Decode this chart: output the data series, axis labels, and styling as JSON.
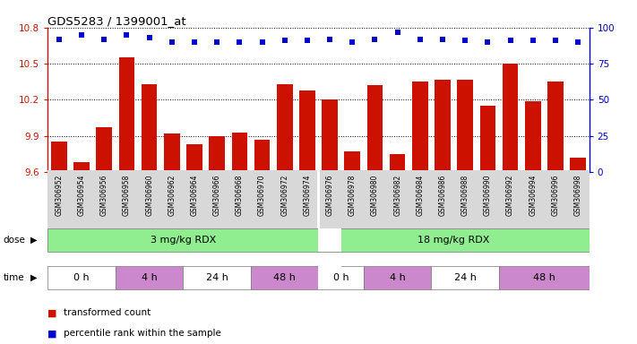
{
  "title": "GDS5283 / 1399001_at",
  "samples": [
    "GSM306952",
    "GSM306954",
    "GSM306956",
    "GSM306958",
    "GSM306960",
    "GSM306962",
    "GSM306964",
    "GSM306966",
    "GSM306968",
    "GSM306970",
    "GSM306972",
    "GSM306974",
    "GSM306976",
    "GSM306978",
    "GSM306980",
    "GSM306982",
    "GSM306984",
    "GSM306986",
    "GSM306988",
    "GSM306990",
    "GSM306992",
    "GSM306994",
    "GSM306996",
    "GSM306998"
  ],
  "bar_values": [
    9.85,
    9.68,
    9.97,
    10.55,
    10.33,
    9.92,
    9.83,
    9.9,
    9.93,
    9.87,
    10.33,
    10.28,
    10.2,
    9.77,
    10.32,
    9.75,
    10.35,
    10.37,
    10.37,
    10.15,
    10.5,
    10.19,
    10.35,
    9.72
  ],
  "percentile_values": [
    92,
    95,
    92,
    95,
    93,
    90,
    90,
    90,
    90,
    90,
    91,
    91,
    92,
    90,
    92,
    97,
    92,
    92,
    91,
    90,
    91,
    91,
    91,
    90
  ],
  "bar_color": "#cc1100",
  "dot_color": "#0000cc",
  "ylim_left": [
    9.6,
    10.8
  ],
  "ylim_right": [
    0,
    100
  ],
  "yticks_left": [
    9.6,
    9.9,
    10.2,
    10.5,
    10.8
  ],
  "yticks_right": [
    0,
    25,
    50,
    75,
    100
  ],
  "grid_values": [
    9.9,
    10.2,
    10.5,
    10.8
  ],
  "dose_groups": [
    {
      "text": "3 mg/kg RDX",
      "start": 0,
      "end": 11,
      "color": "#90ee90"
    },
    {
      "text": "18 mg/kg RDX",
      "start": 12,
      "end": 23,
      "color": "#90ee90"
    }
  ],
  "time_segments": [
    {
      "text": "0 h",
      "start": 0,
      "end": 2,
      "color": "#ffffff"
    },
    {
      "text": "4 h",
      "start": 3,
      "end": 5,
      "color": "#cc88cc"
    },
    {
      "text": "24 h",
      "start": 6,
      "end": 8,
      "color": "#ffffff"
    },
    {
      "text": "48 h",
      "start": 9,
      "end": 11,
      "color": "#cc88cc"
    },
    {
      "text": "0 h",
      "start": 12,
      "end": 13,
      "color": "#ffffff"
    },
    {
      "text": "4 h",
      "start": 14,
      "end": 16,
      "color": "#cc88cc"
    },
    {
      "text": "24 h",
      "start": 17,
      "end": 19,
      "color": "#ffffff"
    },
    {
      "text": "48 h",
      "start": 20,
      "end": 23,
      "color": "#cc88cc"
    }
  ],
  "legend_bar_label": "transformed count",
  "legend_dot_label": "percentile rank within the sample"
}
